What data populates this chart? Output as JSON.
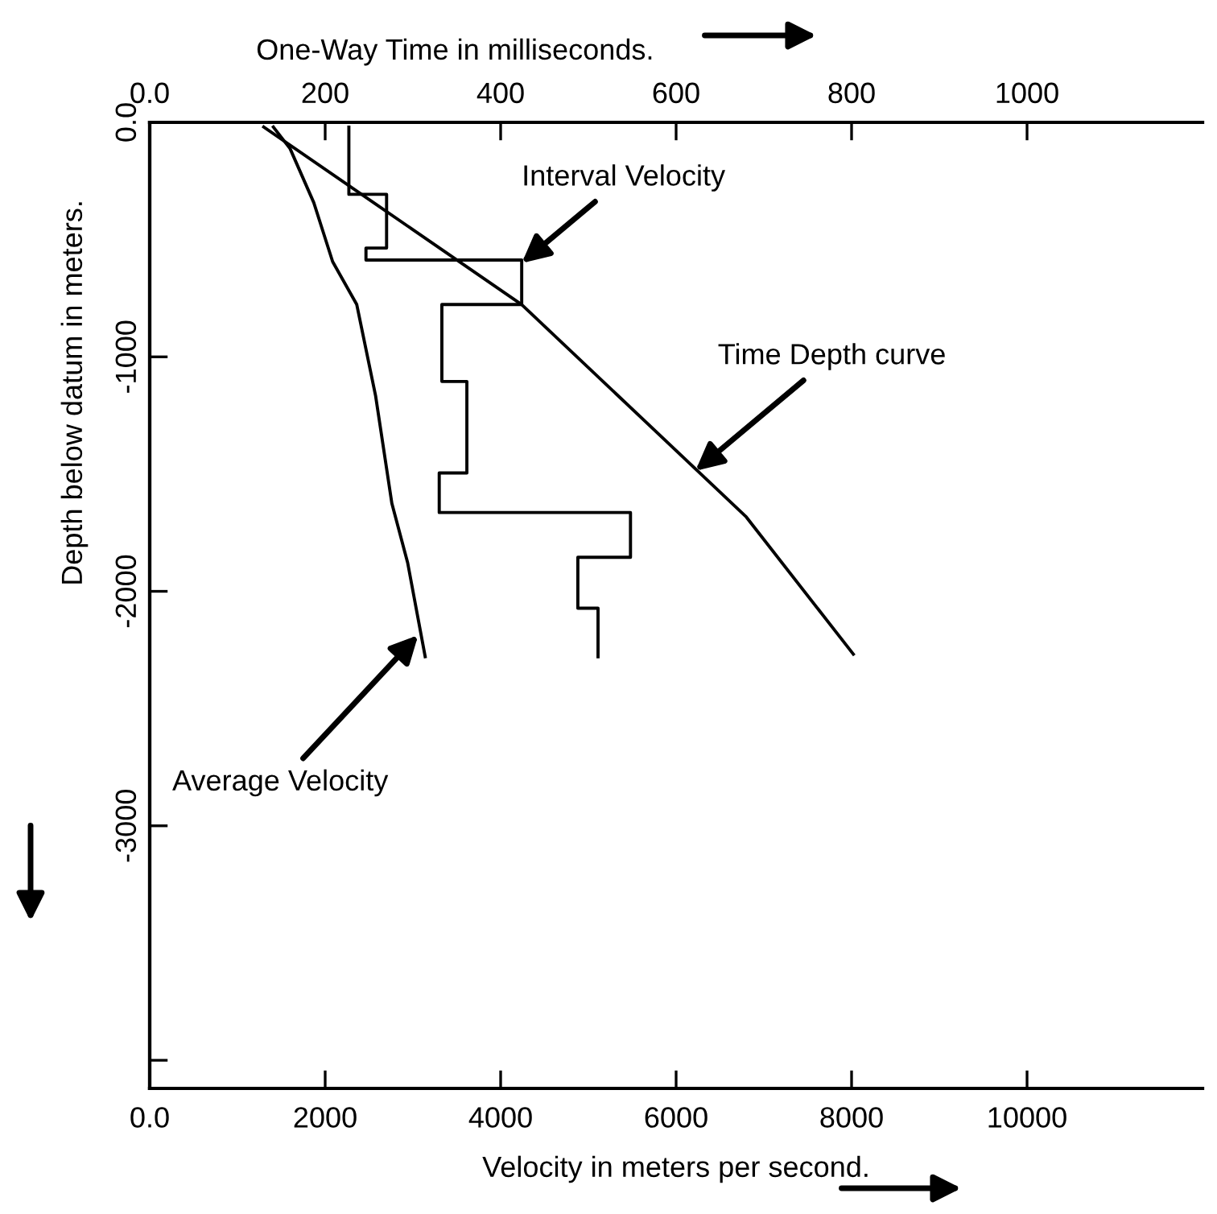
{
  "chart_data": {
    "type": "line",
    "xlabel": "Velocity in meters per second.",
    "x2label": "One-Way Time in milliseconds.",
    "ylabel": "Depth below datum in meters.",
    "xlim": [
      0,
      12000
    ],
    "xticks": [
      {
        "value": 0,
        "label": "0.0"
      },
      2000,
      4000,
      6000,
      8000,
      10000
    ],
    "x2lim": [
      0,
      1200
    ],
    "x2ticks": [
      {
        "value": 0,
        "label": "0.0"
      },
      200,
      400,
      600,
      800,
      1000
    ],
    "ylim": [
      -4120,
      0
    ],
    "yticks": [
      {
        "value": 0,
        "label": "0.0"
      },
      -1000,
      -2000,
      -3000,
      {
        "value": -4000,
        "label": null
      }
    ],
    "series": [
      {
        "color": "#000000",
        "x": [
          2270,
          2270,
          2700,
          2700,
          2465,
          2465,
          4240,
          4240,
          3330,
          3330,
          3615,
          3615,
          3300,
          3300,
          5480,
          5480,
          4880,
          4880,
          5110,
          5110
        ],
        "values": [
          -20,
          -307,
          -307,
          -536,
          -536,
          -587,
          -587,
          -777,
          -777,
          -1105,
          -1105,
          -1495,
          -1495,
          -1664,
          -1664,
          -1855,
          -1855,
          -2072,
          -2072,
          -2279
        ]
      },
      {
        "color": "#000000",
        "x": [
          1410,
          1600,
          1870,
          2085,
          2360,
          2575,
          2760,
          2940,
          3140
        ],
        "values": [
          -20,
          -112,
          -342,
          -594,
          -777,
          -1167,
          -1625,
          -1878,
          -2279
        ]
      },
      {
        "color": "#000000",
        "axis": "x2",
        "x": [
          130,
          424,
          680,
          802
        ],
        "values": [
          -20,
          -777,
          -1683,
          -2268
        ]
      }
    ],
    "annotations": [
      {
        "text": "Interval Velocity",
        "x": 4240,
        "y": -600
      },
      {
        "text": "Time Depth curve",
        "x": 6220,
        "y": -1486
      },
      {
        "text": "Average Velocity",
        "x": 3060,
        "y": -2187
      }
    ],
    "grid": false,
    "legend": false,
    "marker": "none",
    "line_style": "solid"
  }
}
